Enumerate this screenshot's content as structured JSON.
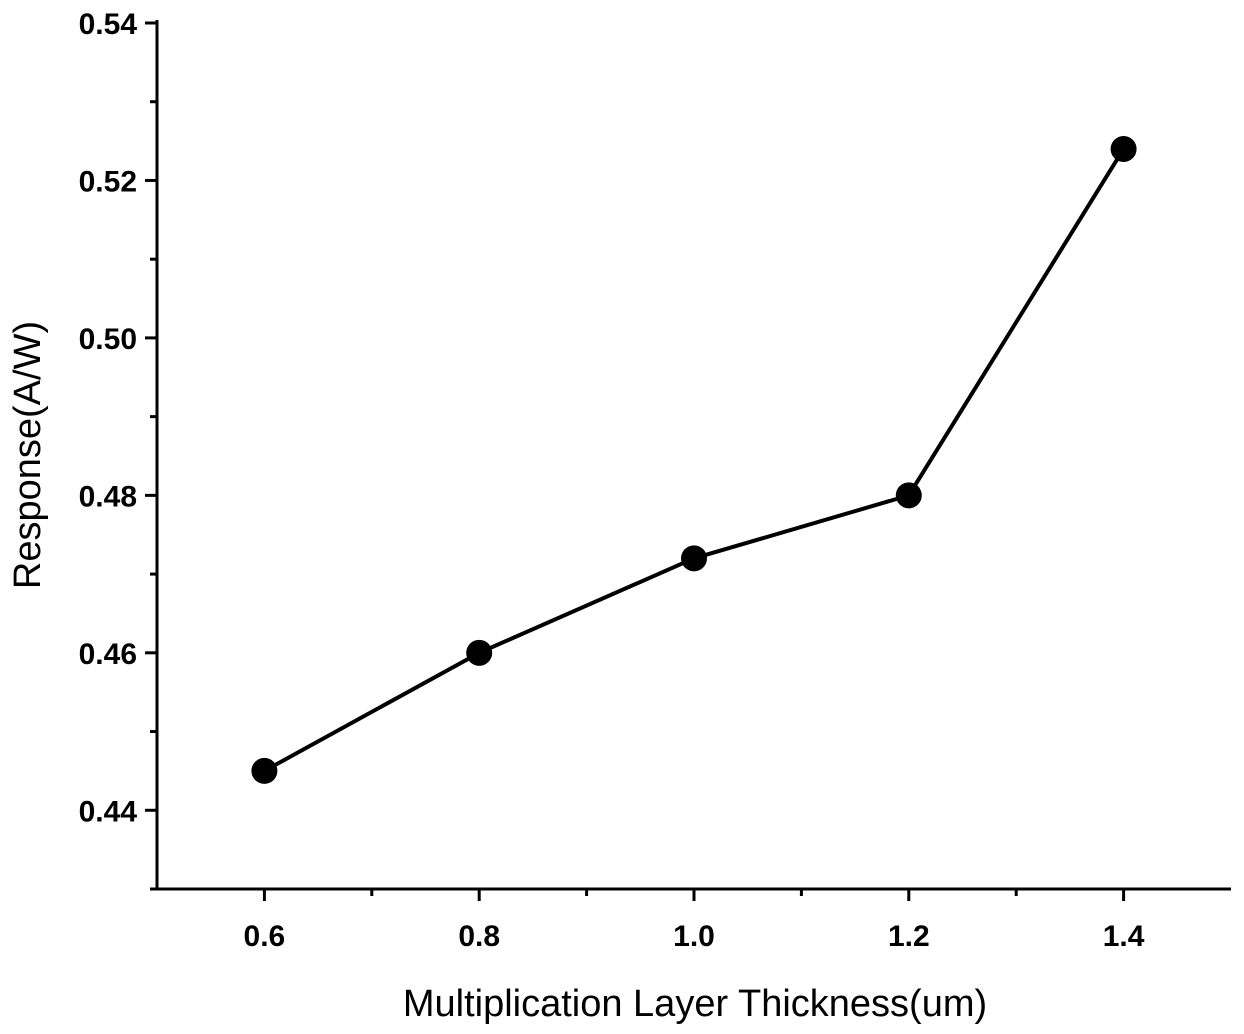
{
  "chart_data": {
    "type": "line",
    "title": "",
    "xlabel": "Multiplication Layer Thickness(um)",
    "ylabel": "Response(A/W)",
    "xlim": [
      0.5,
      1.5
    ],
    "ylim": [
      0.43,
      0.54
    ],
    "x_ticks": [
      {
        "value": 0.6,
        "label": "0.6"
      },
      {
        "value": 0.8,
        "label": "0.8"
      },
      {
        "value": 1.0,
        "label": "1.0"
      },
      {
        "value": 1.2,
        "label": "1.2"
      },
      {
        "value": 1.4,
        "label": "1.4"
      }
    ],
    "y_ticks": [
      {
        "value": 0.44,
        "label": "0.44"
      },
      {
        "value": 0.46,
        "label": "0.46"
      },
      {
        "value": 0.48,
        "label": "0.48"
      },
      {
        "value": 0.5,
        "label": "0.50"
      },
      {
        "value": 0.52,
        "label": "0.52"
      },
      {
        "value": 0.54,
        "label": "0.54"
      }
    ],
    "y_minor_ticks": [
      0.43,
      0.45,
      0.47,
      0.49,
      0.51,
      0.53
    ],
    "x_minor_ticks": [
      0.7,
      0.9,
      1.1,
      1.3
    ],
    "grid": false,
    "legend": "none",
    "series": [
      {
        "x": [
          0.6,
          0.8,
          1.0,
          1.2,
          1.4
        ],
        "y": [
          0.445,
          0.46,
          0.472,
          0.48,
          0.524
        ],
        "color": "#000000",
        "marker": "circle"
      }
    ]
  }
}
